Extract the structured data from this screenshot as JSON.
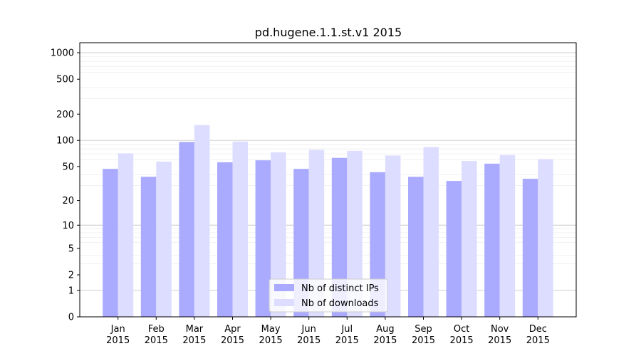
{
  "chart_data": {
    "type": "bar",
    "title": "pd.hugene.1.1.st.v1 2015",
    "xlabel": "",
    "ylabel": "",
    "yscale": "symlog",
    "ylim": [
      0,
      1300
    ],
    "categories": [
      "Jan\n2015",
      "Feb\n2015",
      "Mar\n2015",
      "Apr\n2015",
      "May\n2015",
      "Jun\n2015",
      "Jul\n2015",
      "Aug\n2015",
      "Sep\n2015",
      "Oct\n2015",
      "Nov\n2015",
      "Dec\n2015"
    ],
    "y_ticks": [
      0,
      1,
      2,
      5,
      10,
      20,
      50,
      100,
      200,
      500,
      1000
    ],
    "y_tick_labels": [
      "0",
      "1",
      "2",
      "5",
      "10",
      "20",
      "50",
      "100",
      "200",
      "500",
      "1000"
    ],
    "series": [
      {
        "name": "Nb of distinct IPs",
        "color": "#aaaaff",
        "values": [
          47,
          38,
          96,
          56,
          59,
          47,
          63,
          43,
          38,
          34,
          54,
          36
        ]
      },
      {
        "name": "Nb of downloads",
        "color": "#ddddff",
        "values": [
          71,
          57,
          150,
          97,
          73,
          78,
          76,
          67,
          84,
          58,
          68,
          61
        ]
      }
    ],
    "grid": true,
    "legend": "bottom-center"
  }
}
